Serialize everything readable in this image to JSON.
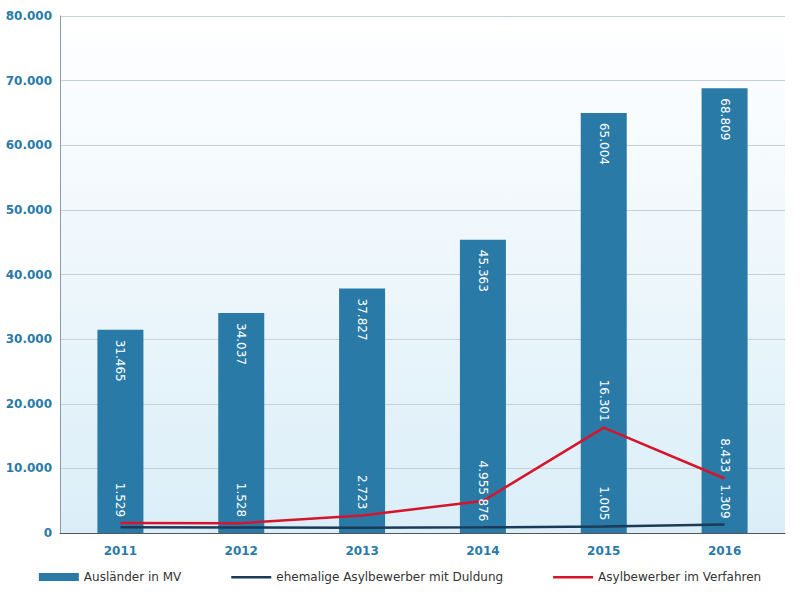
{
  "chart_data": {
    "type": "bar",
    "categories": [
      "2011",
      "2012",
      "2013",
      "2014",
      "2015",
      "2016"
    ],
    "series": [
      {
        "name": "Ausländer in MV",
        "type": "bar",
        "color": "#2a7aa8",
        "values": [
          31465,
          34037,
          37827,
          45363,
          65004,
          68809
        ],
        "value_labels": [
          "31.465",
          "34.037",
          "37.827",
          "45.363",
          "65.004",
          "68.809"
        ]
      },
      {
        "name": "ehemalige Asylbewerber mit Duldung",
        "type": "line",
        "color": "#1b3a57",
        "values": [
          900,
          850,
          800,
          876,
          1005,
          1309
        ],
        "value_labels": [
          null,
          null,
          null,
          "876",
          "1.005",
          "1.309"
        ]
      },
      {
        "name": "Asylbewerber im Verfahren",
        "type": "line",
        "color": "#d4152b",
        "values": [
          1529,
          1528,
          2723,
          4955,
          16301,
          8433
        ],
        "value_labels": [
          "1.529",
          "1.528",
          "2.723",
          "4.955",
          "16.301",
          "8.433"
        ]
      }
    ],
    "ylim": [
      0,
      80000
    ],
    "yticks": [
      0,
      {
        "value": 10000,
        "label": "10.000"
      },
      {
        "value": 20000,
        "label": "20.000"
      },
      {
        "value": 30000,
        "label": "30.000"
      },
      {
        "value": 40000,
        "label": "40.000"
      },
      {
        "value": 50000,
        "label": "50.000"
      },
      {
        "value": 60000,
        "label": "60.000"
      },
      {
        "value": 70000,
        "label": "70.000"
      },
      {
        "value": 80000,
        "label": "80.000"
      }
    ],
    "grid": true,
    "legend": "bottom",
    "data_labels": true
  }
}
